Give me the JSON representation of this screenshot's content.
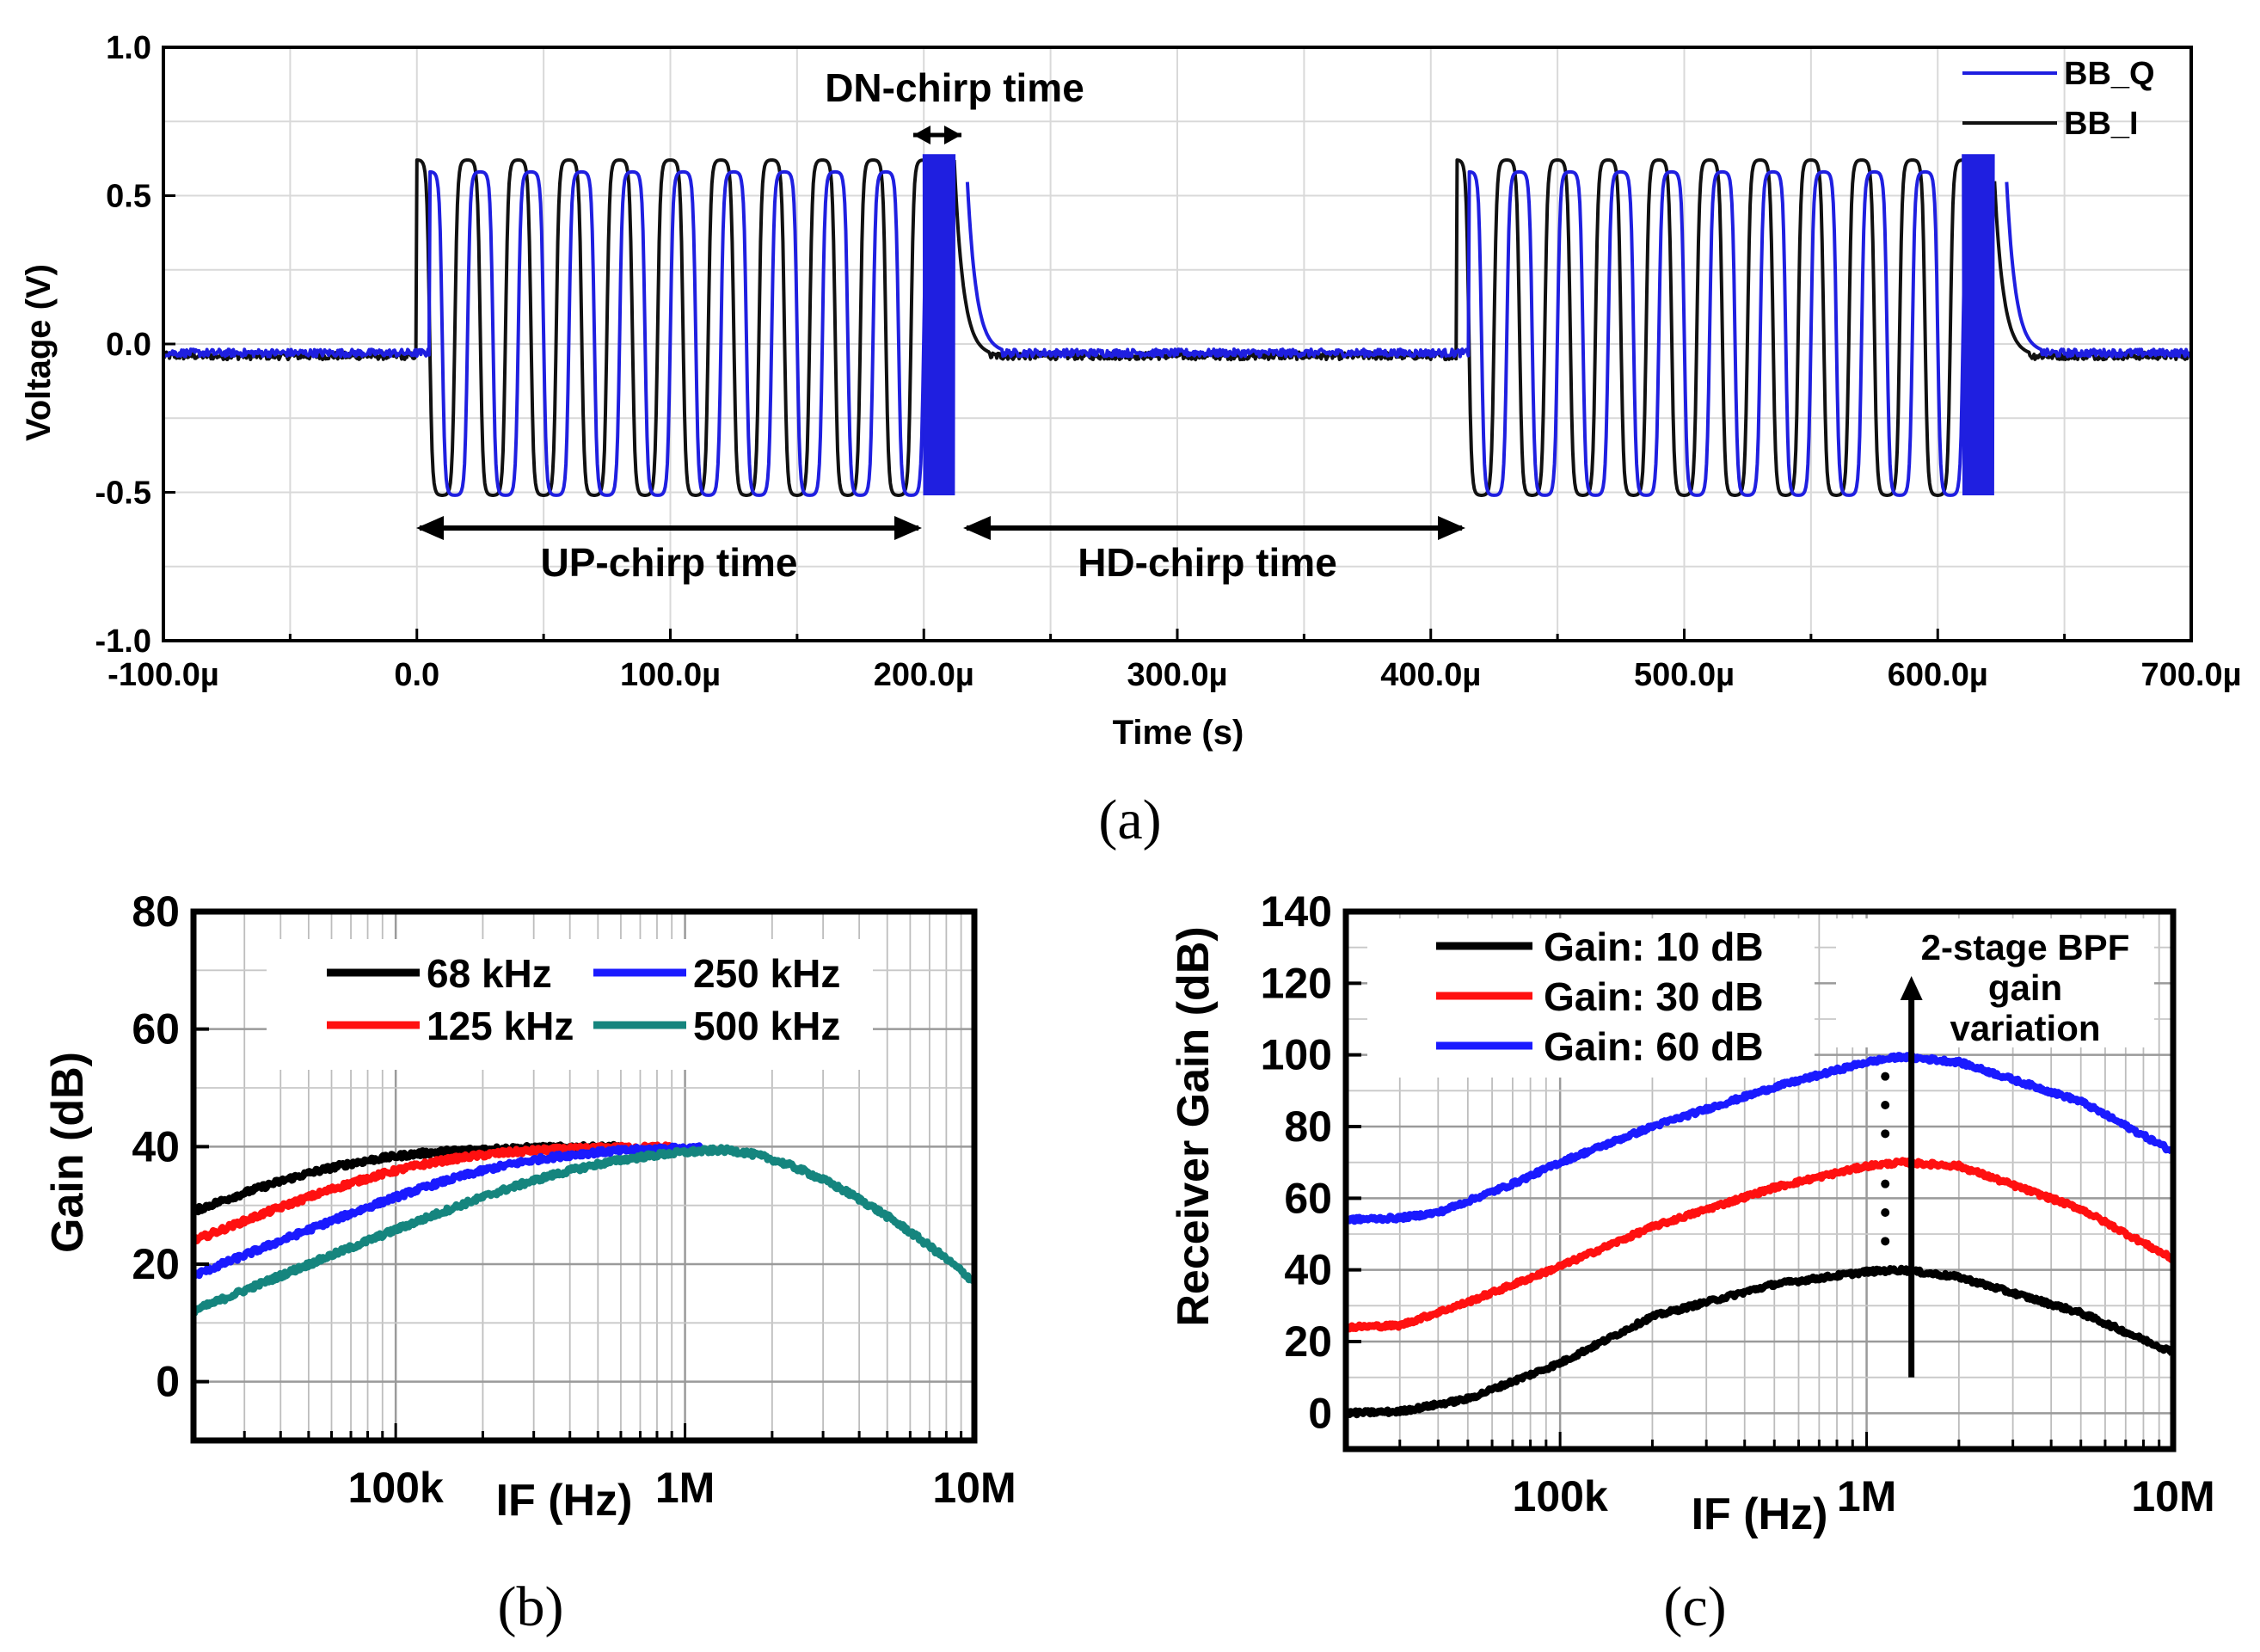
{
  "chart_data": [
    {
      "panel": "a",
      "type": "line",
      "panel_label": "(a)",
      "xlabel": "Time (s)",
      "ylabel": "Voltage (V)",
      "xlim": [
        -100,
        700
      ],
      "ylim": [
        -1.0,
        1.0
      ],
      "x_unit": "µs",
      "x_ticks": [
        -100,
        0,
        100,
        200,
        300,
        400,
        500,
        600,
        700
      ],
      "x_tick_labels": [
        "-100.0µ",
        "0.0",
        "100.0µ",
        "200.0µ",
        "300.0µ",
        "400.0µ",
        "500.0µ",
        "600.0µ",
        "700.0µ"
      ],
      "y_ticks": [
        -1.0,
        -0.5,
        0.0,
        0.5,
        1.0
      ],
      "y_tick_labels": [
        "-1.0",
        "-0.5",
        "0.0",
        "0.5",
        "1.0"
      ],
      "grid": true,
      "legend": {
        "placement": "top-right",
        "entries": [
          "BB_Q",
          "BB_I"
        ]
      },
      "series": [
        {
          "name": "BB_Q",
          "color": "#1f1fe0",
          "phase_lag_us": 5,
          "baseline": -0.03,
          "high": 0.58,
          "low": -0.51
        },
        {
          "name": "BB_I",
          "color": "#111111",
          "phase_lag_us": 0,
          "baseline": -0.04,
          "high": 0.62,
          "low": -0.51
        }
      ],
      "signal": {
        "up_chirp_starts_us": [
          0,
          410
        ],
        "up_chirp_duration_us": 200,
        "dn_chirp_duration_us": 12,
        "cycles_per_up_chirp": 10
      },
      "annotations": [
        {
          "text": "DN-chirp time",
          "x_range": [
            202,
            214
          ],
          "y": 0.7
        },
        {
          "text": "UP-chirp time",
          "x_range": [
            0,
            200
          ],
          "y": -0.62
        },
        {
          "text": "HD-chirp time",
          "x_range": [
            218,
            413
          ],
          "y": -0.62
        }
      ]
    },
    {
      "panel": "b",
      "type": "line",
      "panel_label": "(b)",
      "xlabel": "IF (Hz)",
      "ylabel": "Gain (dB)",
      "x_scale": "log",
      "xlim": [
        20000,
        10000000
      ],
      "ylim": [
        -10,
        80
      ],
      "x_ticks": [
        100000,
        1000000,
        10000000
      ],
      "x_tick_labels": [
        "100k",
        "1M",
        "10M"
      ],
      "y_ticks": [
        0,
        20,
        40,
        60,
        80
      ],
      "y_tick_labels": [
        "0",
        "20",
        "40",
        "60",
        "80"
      ],
      "grid": true,
      "legend": {
        "placement": "top",
        "entries": [
          "68 kHz",
          "250 kHz",
          "125 kHz",
          "500 kHz"
        ]
      },
      "series": [
        {
          "name": "68 kHz",
          "color": "#000000",
          "corner_hz": 68000,
          "peak_db": 40,
          "x_end": 600000
        },
        {
          "name": "125 kHz",
          "color": "#ff1010",
          "corner_hz": 125000,
          "peak_db": 40,
          "x_end": 900000
        },
        {
          "name": "250 kHz",
          "color": "#1a1aff",
          "corner_hz": 250000,
          "peak_db": 40,
          "x_end": 1150000
        },
        {
          "name": "500 kHz",
          "color": "#15857e",
          "corner_hz": 500000,
          "peak_db": 40,
          "x_end": 10000000
        }
      ],
      "high_side": {
        "peak_hz": 1300000,
        "value_at_10M_db": 17
      }
    },
    {
      "panel": "c",
      "type": "line",
      "panel_label": "(c)",
      "xlabel": "IF (Hz)",
      "ylabel": "Receiver Gain (dB)",
      "x_scale": "log",
      "xlim": [
        20000,
        10000000
      ],
      "ylim": [
        -10,
        140
      ],
      "x_ticks": [
        100000,
        1000000,
        10000000
      ],
      "x_tick_labels": [
        "100k",
        "1M",
        "10M"
      ],
      "y_ticks": [
        0,
        20,
        40,
        60,
        80,
        100,
        120,
        140
      ],
      "y_tick_labels": [
        "0",
        "20",
        "40",
        "60",
        "80",
        "100",
        "120",
        "140"
      ],
      "grid": true,
      "legend": {
        "placement": "top-left",
        "entries": [
          "Gain: 10 dB",
          "Gain: 30 dB",
          "Gain: 60 dB"
        ]
      },
      "series": [
        {
          "name": "Gain: 10 dB",
          "color": "#000000",
          "offset_db": 0,
          "points": [
            [
              20000,
              0
            ],
            [
              30000,
              0.5
            ],
            [
              50000,
              4
            ],
            [
              100000,
              14
            ],
            [
              200000,
              27
            ],
            [
              500000,
              36
            ],
            [
              1000000,
              39.5
            ],
            [
              1300000,
              40
            ],
            [
              2000000,
              38
            ],
            [
              5000000,
              28
            ],
            [
              10000000,
              17
            ]
          ]
        },
        {
          "name": "Gain: 30 dB",
          "color": "#ff1010",
          "offset_db": 0,
          "points": [
            [
              20000,
              24
            ],
            [
              30000,
              24.5
            ],
            [
              50000,
              31
            ],
            [
              100000,
              41
            ],
            [
              200000,
              52
            ],
            [
              500000,
              63
            ],
            [
              1000000,
              69
            ],
            [
              1300000,
              70
            ],
            [
              2000000,
              69
            ],
            [
              5000000,
              57
            ],
            [
              10000000,
              43
            ]
          ]
        },
        {
          "name": "Gain: 60 dB",
          "color": "#1a1aff",
          "offset_db": 0,
          "points": [
            [
              20000,
              54
            ],
            [
              30000,
              54.5
            ],
            [
              40000,
              56
            ],
            [
              70000,
              64
            ],
            [
              100000,
              70
            ],
            [
              200000,
              80
            ],
            [
              500000,
              91
            ],
            [
              1000000,
              98
            ],
            [
              1300000,
              99.5
            ],
            [
              2000000,
              98
            ],
            [
              5000000,
              87
            ],
            [
              10000000,
              73
            ]
          ]
        }
      ],
      "annotation": {
        "lines": [
          "2-stage BPF",
          "gain",
          "variation"
        ],
        "arrow_x_hz": 1400000,
        "arrow_y_range": [
          10,
          122
        ]
      }
    }
  ]
}
